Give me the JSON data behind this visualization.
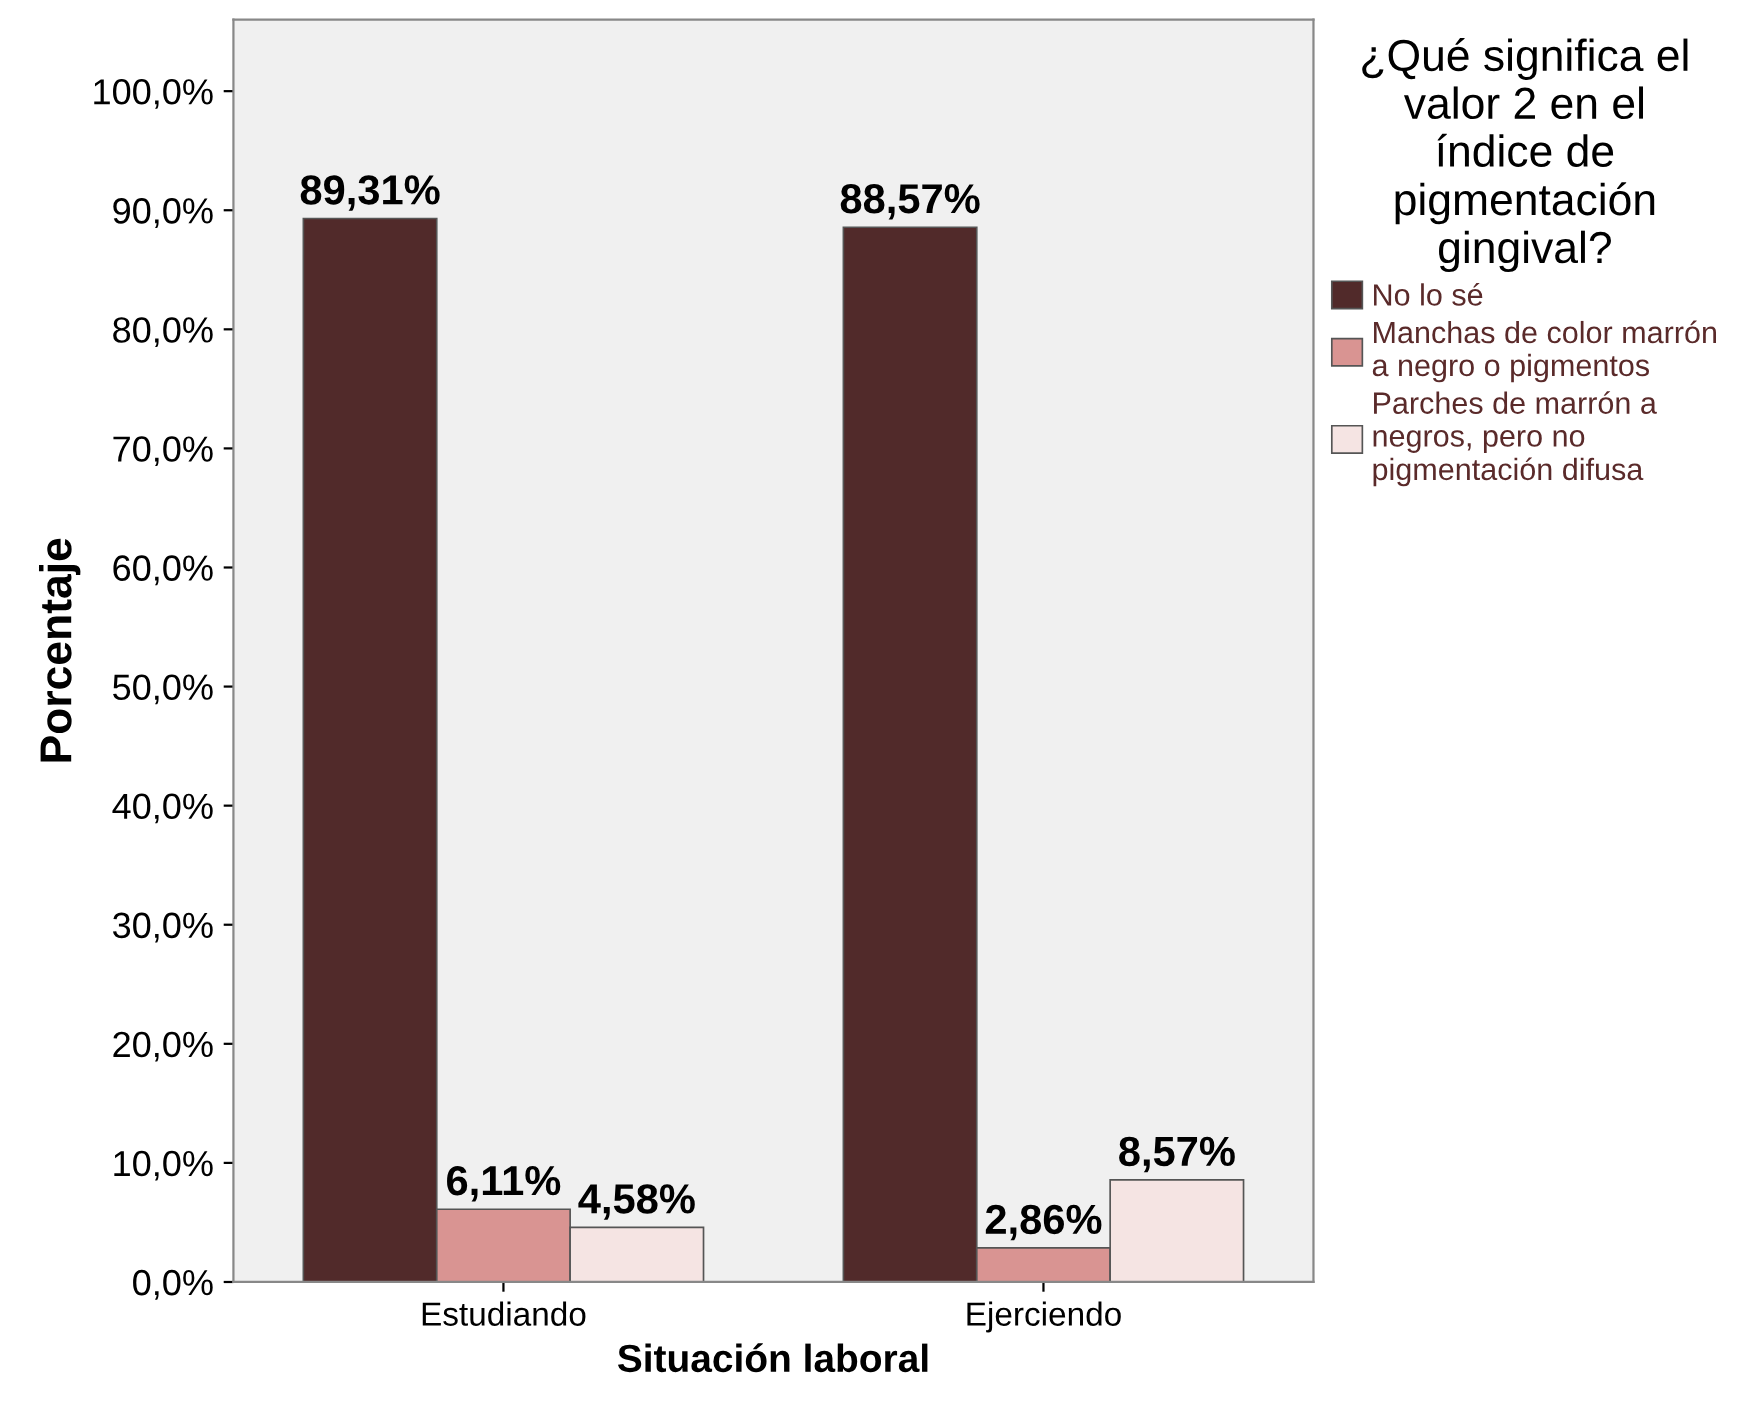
{
  "chart_data": {
    "type": "bar",
    "xlabel": "Situación laboral",
    "ylabel": "Porcentaje",
    "legend_title": "¿Qué significa el\nvalor 2 en el\níndice de\npigmentación\ngingival?",
    "categories": [
      "Estudiando",
      "Ejerciendo"
    ],
    "series": [
      {
        "name": "No lo sé",
        "color": "#512a2a",
        "values": [
          89.31,
          88.57
        ],
        "value_labels": [
          "89,31%",
          "88,57%"
        ]
      },
      {
        "name": "Manchas de color marrón\na negro o pigmentos",
        "color": "#d99492",
        "values": [
          6.11,
          2.86
        ],
        "value_labels": [
          "6,11%",
          "2,86%"
        ]
      },
      {
        "name": "Parches de marrón a\nnegros, pero no\npigmentación difusa",
        "color": "#f5e4e3",
        "values": [
          4.58,
          8.57
        ],
        "value_labels": [
          "4,58%",
          "8,57%"
        ]
      }
    ],
    "ylim": [
      0,
      106
    ],
    "yticks": [
      {
        "value": 0,
        "label": "0,0%"
      },
      {
        "value": 10,
        "label": "10,0%"
      },
      {
        "value": 20,
        "label": "20,0%"
      },
      {
        "value": 30,
        "label": "30,0%"
      },
      {
        "value": 40,
        "label": "40,0%"
      },
      {
        "value": 50,
        "label": "50,0%"
      },
      {
        "value": 60,
        "label": "60,0%"
      },
      {
        "value": 70,
        "label": "70,0%"
      },
      {
        "value": 80,
        "label": "80,0%"
      },
      {
        "value": 90,
        "label": "90,0%"
      },
      {
        "value": 100,
        "label": "100,0%"
      }
    ],
    "grid": false,
    "legend": "right"
  }
}
